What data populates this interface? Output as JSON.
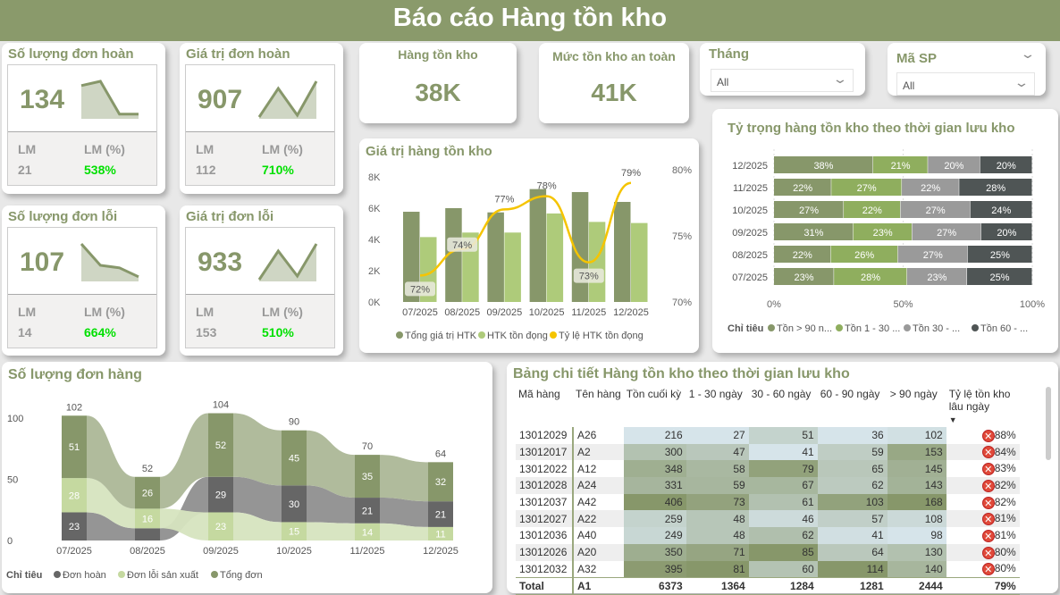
{
  "header": {
    "title": "Báo cáo Hàng tồn kho"
  },
  "colors": {
    "primary": "#87976a",
    "light_green": "#aecb7a",
    "accent": "#f5c400",
    "positive": "#00e000"
  },
  "kpis": [
    {
      "title": "Số lượng đơn hoàn",
      "value": "134",
      "lm_label": "LM",
      "lm_pct_label": "LM (%)",
      "lm": "21",
      "lm_pct": "538%",
      "trend": [
        0.88,
        1,
        0.08,
        0.08
      ]
    },
    {
      "title": "Giá trị đơn hoàn",
      "value": "907",
      "lm_label": "LM",
      "lm_pct_label": "LM (%)",
      "lm": "112",
      "lm_pct": "710%",
      "trend": [
        0,
        0.8,
        0.05,
        1
      ]
    },
    {
      "title": "Số lượng đơn lỗi",
      "value": "107",
      "lm_label": "LM",
      "lm_pct_label": "LM (%)",
      "lm": "14",
      "lm_pct": "664%",
      "trend": [
        1,
        0.4,
        0.33,
        0.08
      ]
    },
    {
      "title": "Giá trị đơn lỗi",
      "value": "933",
      "lm_label": "LM",
      "lm_pct_label": "LM (%)",
      "lm": "153",
      "lm_pct": "510%",
      "trend": [
        0,
        0.8,
        0.1,
        1
      ]
    }
  ],
  "stats": [
    {
      "title": "Hàng tồn kho",
      "value": "38K"
    },
    {
      "title": "Mức tồn kho an toàn",
      "value": "41K"
    }
  ],
  "slicers": [
    {
      "label": "Tháng",
      "value": "All"
    },
    {
      "label": "Mã SP",
      "value": "All"
    }
  ],
  "chart_data": [
    {
      "type": "bar",
      "title": "Giá trị hàng tồn kho",
      "categories": [
        "07/2025",
        "08/2025",
        "09/2025",
        "10/2025",
        "11/2025",
        "12/2025"
      ],
      "y_ticks": [
        "0K",
        "2K",
        "4K",
        "6K",
        "8K"
      ],
      "ylim": [
        0,
        8000
      ],
      "y2_ticks": [
        "70%",
        "75%",
        "80%"
      ],
      "y2lim": [
        70,
        80
      ],
      "series": [
        {
          "name": "Tổng giá trị HTK",
          "kind": "bar",
          "color": "#87976a",
          "values": [
            5770,
            6000,
            5730,
            7220,
            7030,
            6400
          ]
        },
        {
          "name": "HTK tồn đọng",
          "kind": "bar",
          "color": "#aecb7a",
          "values": [
            4150,
            4440,
            4440,
            5660,
            5120,
            5050
          ]
        },
        {
          "name": "Tỷ lệ HTK tồn đọng",
          "kind": "line",
          "axis": "right",
          "color": "#f5c400",
          "values": [
            72,
            74,
            77,
            78,
            73,
            79
          ],
          "labels": [
            "72%",
            "74%",
            "77%",
            "78%",
            "73%",
            "79%"
          ]
        }
      ]
    },
    {
      "type": "bar",
      "orientation": "horizontal-stacked-100",
      "title": "Tỷ trọng hàng tồn kho theo thời gian lưu kho",
      "categories": [
        "12/2025",
        "11/2025",
        "10/2025",
        "09/2025",
        "08/2025",
        "07/2025"
      ],
      "x_ticks": [
        "0%",
        "50%",
        "100%"
      ],
      "legend_title": "Chỉ tiêu",
      "legend": "bottom",
      "series": [
        {
          "name": "Tồn > 90 n...",
          "color": "#87976a",
          "values": [
            38,
            22,
            27,
            31,
            22,
            23
          ]
        },
        {
          "name": "Tồn 1 - 30 ...",
          "color": "#8fae5e",
          "values": [
            21,
            27,
            22,
            23,
            26,
            28
          ]
        },
        {
          "name": "Tồn 30 - ...",
          "color": "#9a9a9a",
          "values": [
            20,
            22,
            27,
            27,
            27,
            23
          ]
        },
        {
          "name": "Tồn 60 - ...",
          "color": "#4f5555",
          "values": [
            20,
            28,
            24,
            20,
            25,
            25
          ]
        }
      ]
    },
    {
      "type": "ribbon",
      "title": "Số lượng đơn hàng",
      "categories": [
        "07/2025",
        "08/2025",
        "09/2025",
        "10/2025",
        "11/2025",
        "12/2025"
      ],
      "y_ticks": [
        "0",
        "50",
        "100"
      ],
      "ylim": [
        0,
        110
      ],
      "totals": [
        "102",
        "52",
        "104",
        "90",
        "70",
        "64"
      ],
      "legend_title": "Chỉ tiêu",
      "legend": "bottom",
      "series": [
        {
          "name": "Đơn hoàn",
          "color": "#666666",
          "ribbon": "#8f8f8f",
          "values": [
            23,
            10,
            29,
            30,
            21,
            21
          ],
          "labels": [
            "23",
            "",
            "29",
            "30",
            "21",
            "21"
          ]
        },
        {
          "name": "Đơn lỗi sản xuất",
          "color": "#c5d9a0",
          "ribbon": "#d6e4bf",
          "values": [
            28,
            16,
            23,
            15,
            14,
            11
          ],
          "labels": [
            "28",
            "16",
            "23",
            "15",
            "14",
            "11"
          ]
        },
        {
          "name": "Tổng đơn",
          "color": "#87976a",
          "ribbon": "#acb797",
          "values": [
            51,
            26,
            52,
            45,
            35,
            32
          ],
          "labels": [
            "51",
            "26",
            "52",
            "45",
            "35",
            "32"
          ]
        }
      ]
    }
  ],
  "table": {
    "title": "Bảng chi tiết Hàng tồn kho theo thời gian lưu kho",
    "columns": [
      "Mã hàng",
      "Tên hàng",
      "Tồn cuối kỳ",
      "1 - 30 ngày",
      "30 - 60 ngày",
      "60 - 90 ngày",
      "> 90 ngày",
      "Tỷ lệ tồn kho lâu ngày"
    ],
    "sort_indicator": "▼",
    "rows": [
      [
        "13012029",
        "A26",
        "216",
        "27",
        "51",
        "36",
        "102",
        "88%"
      ],
      [
        "13012017",
        "A2",
        "300",
        "47",
        "41",
        "59",
        "153",
        "84%"
      ],
      [
        "13012022",
        "A12",
        "348",
        "58",
        "79",
        "65",
        "145",
        "83%"
      ],
      [
        "13012028",
        "A24",
        "331",
        "59",
        "67",
        "62",
        "143",
        "82%"
      ],
      [
        "13012037",
        "A42",
        "406",
        "73",
        "61",
        "103",
        "168",
        "82%"
      ],
      [
        "13012027",
        "A22",
        "259",
        "48",
        "46",
        "57",
        "108",
        "81%"
      ],
      [
        "13012036",
        "A40",
        "249",
        "48",
        "62",
        "41",
        "98",
        "81%"
      ],
      [
        "13012026",
        "A20",
        "350",
        "71",
        "85",
        "64",
        "130",
        "80%"
      ],
      [
        "13012032",
        "A32",
        "395",
        "81",
        "60",
        "114",
        "140",
        "80%"
      ]
    ],
    "total": [
      "Total",
      "A1",
      "6373",
      "1364",
      "1284",
      "1281",
      "2444",
      "79%"
    ],
    "status_icon": "error-x-icon"
  }
}
